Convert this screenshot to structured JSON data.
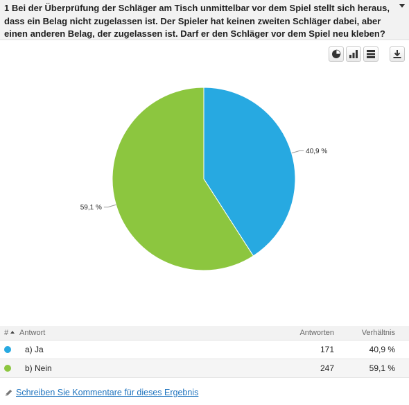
{
  "question": {
    "text": "1 Bei der Überprüfung der Schläger am Tisch unmittelbar vor dem Spiel stellt sich heraus, dass ein Belag nicht zugelassen ist. Der Spieler hat keinen zweiten Schläger dabei, aber einen anderen Belag, der zugelassen ist. Darf er den Schläger vor dem Spiel neu kleben?"
  },
  "toolbar": {
    "buttons": [
      {
        "icon": "pie-chart-icon"
      },
      {
        "icon": "bar-chart-icon"
      },
      {
        "icon": "table-icon"
      },
      {
        "icon": "download-icon"
      }
    ]
  },
  "chart_data": {
    "type": "pie",
    "categories": [
      "a) Ja",
      "b) Nein"
    ],
    "values": [
      40.9,
      59.1
    ],
    "labels": [
      "40,9 %",
      "59,1 %"
    ],
    "colors": [
      "#27a9e1",
      "#8cc63f"
    ]
  },
  "table": {
    "headers": {
      "index": "#",
      "answer": "Antwort",
      "count": "Antworten",
      "ratio": "Verhältnis"
    },
    "rows": [
      {
        "answer": "a) Ja",
        "count": "171",
        "ratio": "40,9 %",
        "color": "#27a9e1"
      },
      {
        "answer": "b) Nein",
        "count": "247",
        "ratio": "59,1 %",
        "color": "#8cc63f"
      }
    ]
  },
  "comment_link": "Schreiben Sie Kommentare für dieses Ergebnis"
}
